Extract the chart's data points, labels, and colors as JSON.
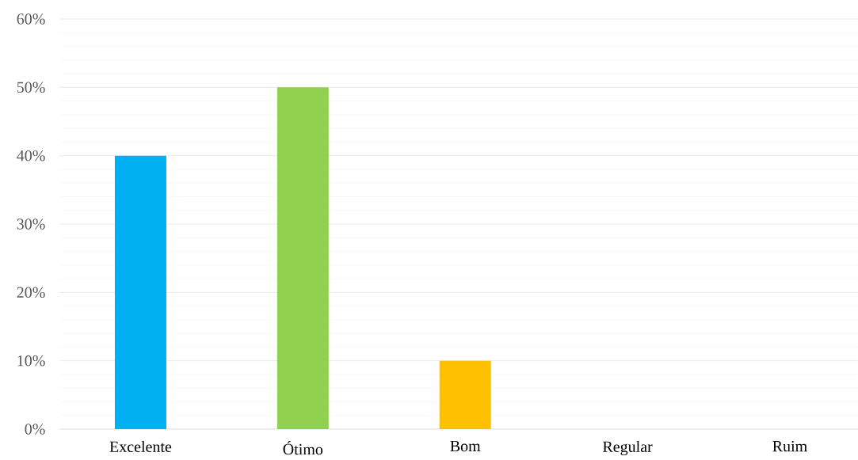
{
  "chart_data": {
    "type": "bar",
    "categories": [
      "Excelente",
      "Ótimo",
      "Bom",
      "Regular",
      "Ruim"
    ],
    "values": [
      40,
      50,
      10,
      0,
      0
    ],
    "colors": [
      "#00b0f0",
      "#92d050",
      "#ffc000",
      "#a5a5a5",
      "#5b9bd5"
    ],
    "ylim": [
      0,
      60
    ],
    "yticks": [
      {
        "value": 0,
        "label": "0%"
      },
      {
        "value": 10,
        "label": "10%"
      },
      {
        "value": 20,
        "label": "20%"
      },
      {
        "value": 30,
        "label": "30%"
      },
      {
        "value": 40,
        "label": "40%"
      },
      {
        "value": 50,
        "label": "50%"
      },
      {
        "value": 60,
        "label": "60%"
      }
    ],
    "grid": true
  }
}
